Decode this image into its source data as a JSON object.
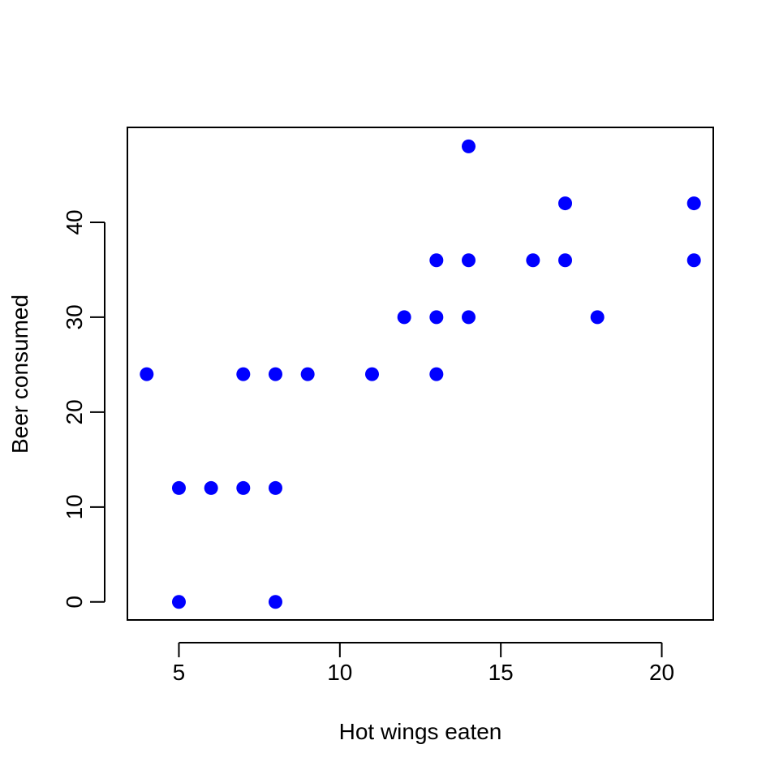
{
  "chart_data": {
    "type": "scatter",
    "title": "",
    "xlabel": "Hot wings eaten",
    "ylabel": "Beer consumed",
    "xlim": [
      3.4,
      21.6
    ],
    "ylim": [
      -1.9,
      50
    ],
    "xticks": [
      5,
      10,
      15,
      20
    ],
    "yticks": [
      0,
      10,
      20,
      30,
      40
    ],
    "grid": false,
    "legend": "none",
    "point_color": "#0000FF",
    "points": [
      {
        "x": 4,
        "y": 24
      },
      {
        "x": 5,
        "y": 12
      },
      {
        "x": 5,
        "y": 0
      },
      {
        "x": 6,
        "y": 12
      },
      {
        "x": 7,
        "y": 24
      },
      {
        "x": 7,
        "y": 12
      },
      {
        "x": 8,
        "y": 24
      },
      {
        "x": 8,
        "y": 12
      },
      {
        "x": 8,
        "y": 0
      },
      {
        "x": 9,
        "y": 24
      },
      {
        "x": 11,
        "y": 24
      },
      {
        "x": 12,
        "y": 30
      },
      {
        "x": 13,
        "y": 36
      },
      {
        "x": 13,
        "y": 30
      },
      {
        "x": 13,
        "y": 24
      },
      {
        "x": 14,
        "y": 48
      },
      {
        "x": 14,
        "y": 36
      },
      {
        "x": 14,
        "y": 30
      },
      {
        "x": 16,
        "y": 36
      },
      {
        "x": 17,
        "y": 42
      },
      {
        "x": 17,
        "y": 36
      },
      {
        "x": 18,
        "y": 30
      },
      {
        "x": 21,
        "y": 42
      },
      {
        "x": 21,
        "y": 36
      }
    ]
  }
}
